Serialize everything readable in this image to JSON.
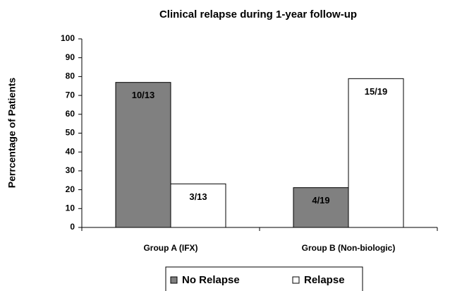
{
  "chart_data": {
    "type": "bar",
    "title": "Clinical relapse during 1-year follow-up",
    "ylabel": "Perrcentage of Patients",
    "categories": [
      "Group A (IFX)",
      "Group B (Non-biologic)"
    ],
    "series": [
      {
        "name": "No Relapse",
        "color": "#808080",
        "values": [
          76.9,
          21.1
        ],
        "value_labels": [
          "10/13",
          "4/19"
        ]
      },
      {
        "name": "Relapse",
        "color": "#ffffff",
        "values": [
          23.1,
          78.9
        ],
        "value_labels": [
          "3/13",
          "15/19"
        ]
      }
    ],
    "ylim": [
      0,
      100
    ],
    "yticks": [
      0,
      10,
      20,
      30,
      40,
      50,
      60,
      70,
      80,
      90,
      100
    ],
    "legend": "bottom"
  }
}
